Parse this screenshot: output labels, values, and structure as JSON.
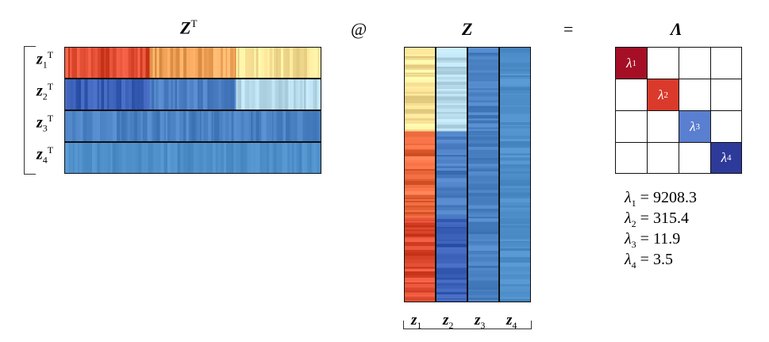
{
  "titles": {
    "zt": "Z",
    "zt_sup": "T",
    "at": "@",
    "z": "Z",
    "eq": "=",
    "lambda": "Λ"
  },
  "rows": [
    {
      "sym": "z",
      "sub": "1",
      "sup": "T"
    },
    {
      "sym": "z",
      "sub": "2",
      "sup": "T"
    },
    {
      "sym": "z",
      "sub": "3",
      "sup": "T"
    },
    {
      "sym": "z",
      "sub": "4",
      "sup": "T"
    }
  ],
  "cols": [
    {
      "sym": "z",
      "sub": "1"
    },
    {
      "sym": "z",
      "sub": "2"
    },
    {
      "sym": "z",
      "sub": "3"
    },
    {
      "sym": "z",
      "sub": "4"
    }
  ],
  "diag_cells": [
    {
      "sym": "λ",
      "sub": "1",
      "color": "#a50f26"
    },
    {
      "sym": "λ",
      "sub": "2",
      "color": "#d93a2b"
    },
    {
      "sym": "λ",
      "sub": "3",
      "color": "#5a7fd0"
    },
    {
      "sym": "λ",
      "sub": "4",
      "color": "#2e3a9a"
    }
  ],
  "eigenvalues": [
    {
      "sym": "λ",
      "sub": "1",
      "text": " = 9208.3"
    },
    {
      "sym": "λ",
      "sub": "2",
      "text": " = 315.4"
    },
    {
      "sym": "λ",
      "sub": "3",
      "text": " = 11.9"
    },
    {
      "sym": "λ",
      "sub": "4",
      "text": " = 3.5"
    }
  ],
  "colors": {
    "z1_a": "#e14e33",
    "z1_b": "#f4a55c",
    "z1_c": "#fde59a",
    "z2_a": "#3a5fb7",
    "z2_b": "#4a7dc2",
    "z2_c": "#b9dcec",
    "z3": "#4b82c4",
    "z4": "#4e8fca"
  }
}
